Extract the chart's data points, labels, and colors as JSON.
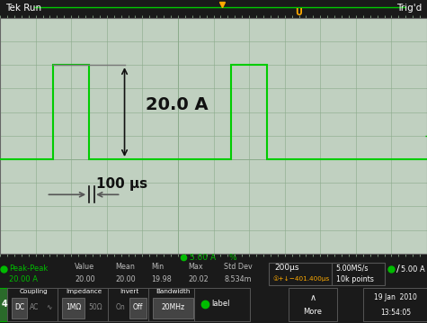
{
  "bg_color": "#1a1a1a",
  "screen_bg": "#c0d0c0",
  "grid_color": "#8aaa8a",
  "trace_color": "#00cc00",
  "annotation_color": "#111111",
  "arrow_color": "#555555",
  "header_bg": "#111111",
  "footer_bg": "#111111",
  "title_text": "Tek Run",
  "trig_text": "Trig'd",
  "measurement_text": "20.0 A",
  "time_text": "100 μs",
  "pulse1_start": -3.5,
  "pulse1_end": -2.5,
  "pulse2_start": 1.5,
  "pulse2_end": 2.5,
  "pulse_high": 4.0,
  "pulse_low": 0.0,
  "xmin": -5.0,
  "xmax": 7.0,
  "ymin": -4.0,
  "ymax": 6.0,
  "green_dot_color": "#00bb00",
  "orange_marker_color": "#ffaa00",
  "label_color": "#00bb00"
}
